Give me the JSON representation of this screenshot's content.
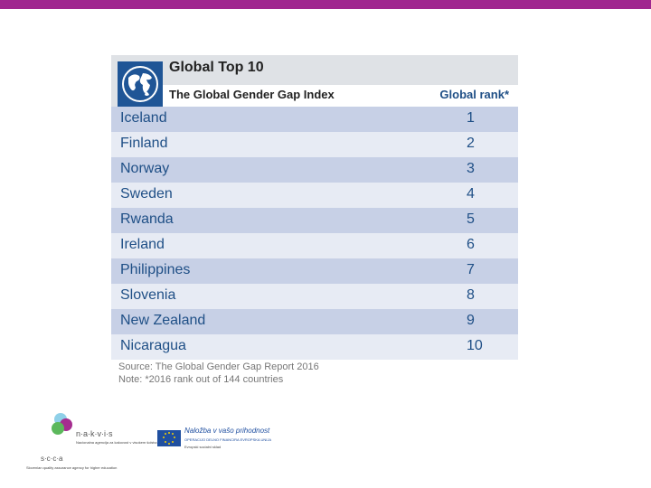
{
  "table": {
    "title": "Global Top 10",
    "subtitle": "The Global Gender Gap Index",
    "rank_header": "Global rank*",
    "rows": [
      {
        "country": "Iceland",
        "rank": "1"
      },
      {
        "country": "Finland",
        "rank": "2"
      },
      {
        "country": "Norway",
        "rank": "3"
      },
      {
        "country": "Sweden",
        "rank": "4"
      },
      {
        "country": "Rwanda",
        "rank": "5"
      },
      {
        "country": "Ireland",
        "rank": "6"
      },
      {
        "country": "Philippines",
        "rank": "7"
      },
      {
        "country": "Slovenia",
        "rank": "8"
      },
      {
        "country": "New Zealand",
        "rank": "9"
      },
      {
        "country": "Nicaragua",
        "rank": "10"
      }
    ],
    "source": "Source: The Global Gender Gap Report 2016",
    "note": "Note: *2016 rank out of 144 countries"
  },
  "logos": {
    "nakvis": "n·a·k·v·i·s",
    "nakvis_tag": "Nacionalna agencija za kakovost v visokem šolstvu",
    "scda": "s·c·c·a",
    "scda_tag": "Slovenian quality assurance agency for higher education",
    "eu_title": "Naložba v vašo prihodnost",
    "eu_sub": "OPERACIJO DELNO FINANCIRA EVROPSKA UNIJA",
    "eu_fund": "Evropski socialni sklad"
  },
  "colors": {
    "accent_bar": "#a0268f",
    "row_dark": "#c7d0e6",
    "row_light": "#e7ebf4",
    "text_blue": "#1f4f86",
    "globe_bg": "#1f5596"
  },
  "icons": {
    "globe": "globe-icon",
    "eu_flag": "eu-flag-icon"
  }
}
